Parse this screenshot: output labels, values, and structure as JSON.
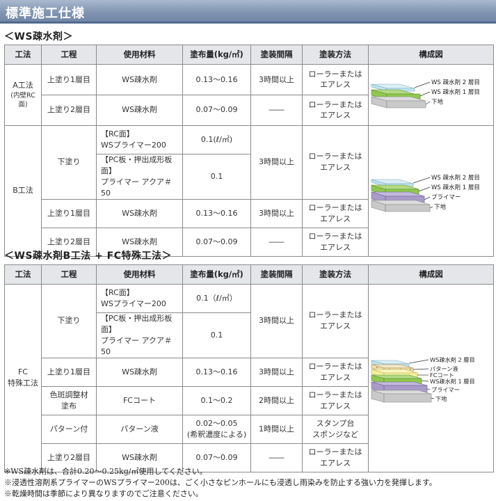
{
  "page_title": "標準施工仕様",
  "section1": {
    "heading": "＜WS疎水剤＞",
    "headers": [
      "工法",
      "工程",
      "使用材料",
      "塗布量(kg/㎡)",
      "塗装間隔",
      "塗装方法",
      "構成図"
    ],
    "rowA": {
      "method": "A工法",
      "method_sub": "(内壁RC面)",
      "r1": {
        "step": "上塗り1層目",
        "material": "WS疎水剤",
        "amount": "0.13〜0.16",
        "interval": "3時間以上",
        "how1": "ローラーまたは",
        "how2": "エアレス"
      },
      "r2": {
        "step": "上塗り2層目",
        "material": "WS疎水剤",
        "amount": "0.07〜0.09",
        "interval": "――",
        "how1": "ローラーまたは",
        "how2": "エアレス"
      },
      "diagram_labels": [
        "WS 疎水剤 2 層目",
        "WS 疎水剤 1 層目",
        "下地"
      ]
    },
    "rowB": {
      "method": "B工法",
      "r1": {
        "step": "下塗り",
        "mat1_a": "【RC面】",
        "mat1_b": "WSプライマー200",
        "amount1": "0.1(ℓ/㎡)",
        "mat2_a": "【PC板・押出成形板面】",
        "mat2_b": "プライマー アクア＃50",
        "amount2": "0.1",
        "interval": "3時間以上",
        "how1": "ローラーまたは",
        "how2": "エアレス"
      },
      "r2": {
        "step": "上塗り1層目",
        "material": "WS疎水剤",
        "amount": "0.13〜0.16",
        "interval": "3時間以上",
        "how1": "ローラーまたは",
        "how2": "エアレス"
      },
      "r3": {
        "step": "上塗り2層目",
        "material": "WS疎水剤",
        "amount": "0.07〜0.09",
        "interval": "――",
        "how1": "ローラーまたは",
        "how2": "エアレス"
      },
      "diagram_labels": [
        "WS 疎水剤 2 層目",
        "WS 疎水剤 1 層目",
        "プライマー",
        "下地"
      ]
    }
  },
  "section2": {
    "heading": "＜WS疎水剤B工法 + FC特殊工法＞",
    "headers": [
      "工法",
      "工程",
      "使用材料",
      "塗布量(kg/㎡)",
      "塗装間隔",
      "塗装方法",
      "構成図"
    ],
    "method1": "FC",
    "method2": "特殊工法",
    "r1": {
      "step": "下塗り",
      "mat1_a": "【RC面】",
      "mat1_b": "WSプライマー200",
      "amount1": "0.1（ℓ/㎡）",
      "mat2_a": "【PC板・押出成形板面】",
      "mat2_b": "プライマー アクア＃50",
      "amount2": "0.1",
      "interval": "3時間以上",
      "how1": "ローラーまたは",
      "how2": "エアレス"
    },
    "r2": {
      "step": "上塗り1層目",
      "material": "WS疎水剤",
      "amount": "0.13〜0.16",
      "interval": "3時間以上",
      "how1": "ローラーまたは",
      "how2": "エアレス"
    },
    "r3": {
      "step1": "色斑調整材",
      "step2": "塗布",
      "material": "FCコート",
      "amount": "0.1〜0.2",
      "interval": "2時間以上",
      "how1": "ローラーまたは",
      "how2": "エアレス"
    },
    "r4": {
      "step": "パターン付",
      "material": "パターン液",
      "amount1": "0.02〜0.05",
      "amount2": "(希釈濃度による)",
      "interval": "1時間以上",
      "how1": "スタンプ台",
      "how2": "スポンジなど"
    },
    "r5": {
      "step": "上塗り2層目",
      "material": "WS疎水剤",
      "amount": "0.07〜0.09",
      "interval": "――",
      "how1": "ローラーまたは",
      "how2": "エアレス"
    },
    "diagram_labels": [
      "WS疎水剤 2 層目",
      "パターン液",
      "FCコート",
      "WS疎水剤 1 層目",
      "プライマー",
      "下地"
    ]
  },
  "notes": [
    "※WS疎水剤は、合計0.20〜0.25kg/㎡使用してください。",
    "※浸透性溶剤系プライマーのWSプライマー200は、ごく小さなピンホールにも浸透し雨染みを防止する強い力を発揮します。",
    "※乾燥時間は季節により異なりますのでご注意ください。"
  ],
  "colors": {
    "header_bg": "#e4e6ea",
    "layer_top_blue": "#bfe3f1",
    "layer_green": "#8fc74f",
    "layer_primer_purple": "#a99bc8",
    "layer_fc_yellow": "#f5f0a0",
    "substrate_gray": "#c9c9c9"
  }
}
